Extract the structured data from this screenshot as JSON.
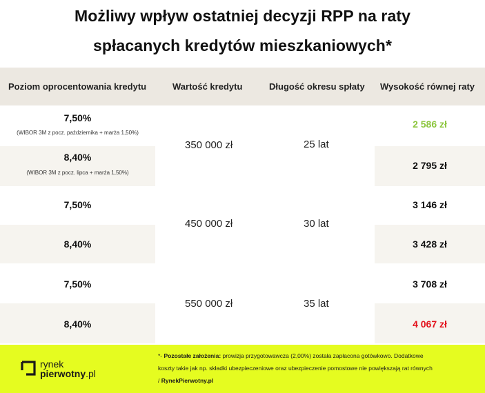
{
  "title": {
    "line1": "Możliwy wpływ ostatniej decyzji RPP na raty",
    "line2": "spłacanych kredytów mieszkaniowych*"
  },
  "header": {
    "col1": "Poziom oprocentowania kredytu",
    "col2": "Wartość kredytu",
    "col3": "Długość okresu spłaty",
    "col4": "Wysokość równej raty"
  },
  "groups": [
    {
      "amount": "350 000 zł",
      "period": "25 lat",
      "rows": [
        {
          "rate": "7,50%",
          "note": "(WIBOR 3M z pocz. października + marża 1,50%)",
          "installment": "2 586 zł"
        },
        {
          "rate": "8,40%",
          "note": "(WIBOR 3M z pocz. lipca + marża 1,50%)",
          "installment": "2 795 zł"
        }
      ]
    },
    {
      "amount": "450 000 zł",
      "period": "30 lat",
      "rows": [
        {
          "rate": "7,50%",
          "installment": "3 146 zł"
        },
        {
          "rate": "8,40%",
          "installment": "3 428 zł"
        }
      ]
    },
    {
      "amount": "550 000 zł",
      "period": "35 lat",
      "rows": [
        {
          "rate": "7,50%",
          "installment": "3 708 zł"
        },
        {
          "rate": "8,40%",
          "installment": "4 067 zł"
        }
      ]
    }
  ],
  "colors": {
    "highlight_low": "#8dc63f",
    "highlight_high": "#e3111b",
    "footer_bg": "#e5fc20",
    "header_bg": "#ece8e1",
    "band_bg": "#f6f4ef"
  },
  "footer": {
    "logo_line1": "rynek",
    "logo_line2_bold": "pierwotny",
    "logo_line2_tld": ".pl",
    "note_prefix": "*- ",
    "note_label": "Pozostałe założenia:",
    "note_line1": " prowizja przygotowawcza (2,00%) została zapłacona gotówkowo. Dodatkowe",
    "note_line2": "koszty takie jak np. składki ubezpieczeniowe oraz ubezpieczenie pomostowe nie powiększają rat równych",
    "note_sep": "/ ",
    "note_source": "RynekPierwotny.pl"
  }
}
